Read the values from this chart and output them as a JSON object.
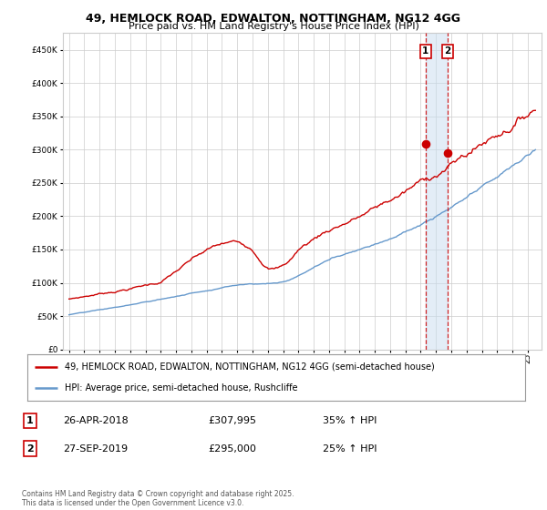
{
  "title1": "49, HEMLOCK ROAD, EDWALTON, NOTTINGHAM, NG12 4GG",
  "title2": "Price paid vs. HM Land Registry's House Price Index (HPI)",
  "legend_label1": "49, HEMLOCK ROAD, EDWALTON, NOTTINGHAM, NG12 4GG (semi-detached house)",
  "legend_label2": "HPI: Average price, semi-detached house, Rushcliffe",
  "transaction1_date": "26-APR-2018",
  "transaction1_price": "£307,995",
  "transaction1_hpi": "35% ↑ HPI",
  "transaction2_date": "27-SEP-2019",
  "transaction2_price": "£295,000",
  "transaction2_hpi": "25% ↑ HPI",
  "footnote": "Contains HM Land Registry data © Crown copyright and database right 2025.\nThis data is licensed under the Open Government Licence v3.0.",
  "red_color": "#cc0000",
  "blue_color": "#6699cc",
  "background_color": "#ffffff",
  "grid_color": "#cccccc",
  "ylim": [
    0,
    475000
  ],
  "yticks": [
    0,
    50000,
    100000,
    150000,
    200000,
    250000,
    300000,
    350000,
    400000,
    450000
  ],
  "transaction1_x": 2018.32,
  "transaction2_x": 2019.75,
  "transaction1_y": 307995,
  "transaction2_y": 295000,
  "xlim_start": 1994.6,
  "xlim_end": 2025.9
}
